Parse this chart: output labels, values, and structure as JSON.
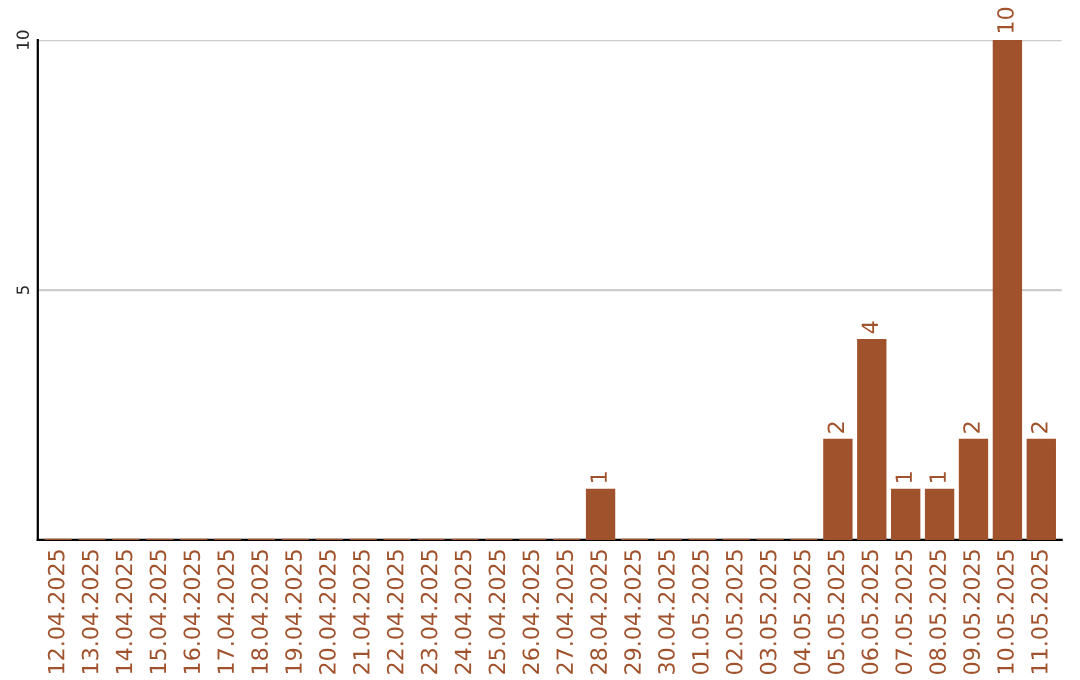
{
  "chart_data": {
    "type": "bar",
    "categories": [
      "12.04.2025",
      "13.04.2025",
      "14.04.2025",
      "15.04.2025",
      "16.04.2025",
      "17.04.2025",
      "18.04.2025",
      "19.04.2025",
      "20.04.2025",
      "21.04.2025",
      "22.04.2025",
      "23.04.2025",
      "24.04.2025",
      "25.04.2025",
      "26.04.2025",
      "27.04.2025",
      "28.04.2025",
      "29.04.2025",
      "30.04.2025",
      "01.05.2025",
      "02.05.2025",
      "03.05.2025",
      "04.05.2025",
      "05.05.2025",
      "06.05.2025",
      "07.05.2025",
      "08.05.2025",
      "09.05.2025",
      "10.05.2025",
      "11.05.2025"
    ],
    "values": [
      0,
      0,
      0,
      0,
      0,
      0,
      0,
      0,
      0,
      0,
      0,
      0,
      0,
      0,
      0,
      0,
      1,
      0,
      0,
      0,
      0,
      0,
      0,
      2,
      4,
      1,
      1,
      2,
      10,
      2
    ],
    "value_labels": [
      null,
      null,
      null,
      null,
      null,
      null,
      null,
      null,
      null,
      null,
      null,
      null,
      null,
      null,
      null,
      null,
      "1",
      null,
      null,
      null,
      null,
      null,
      null,
      "2",
      "4",
      "1",
      "1",
      "2",
      "10",
      "2"
    ],
    "color": "#a0522d",
    "ylim": [
      0,
      10
    ],
    "yticks": [
      5,
      10
    ],
    "grid": "y"
  }
}
